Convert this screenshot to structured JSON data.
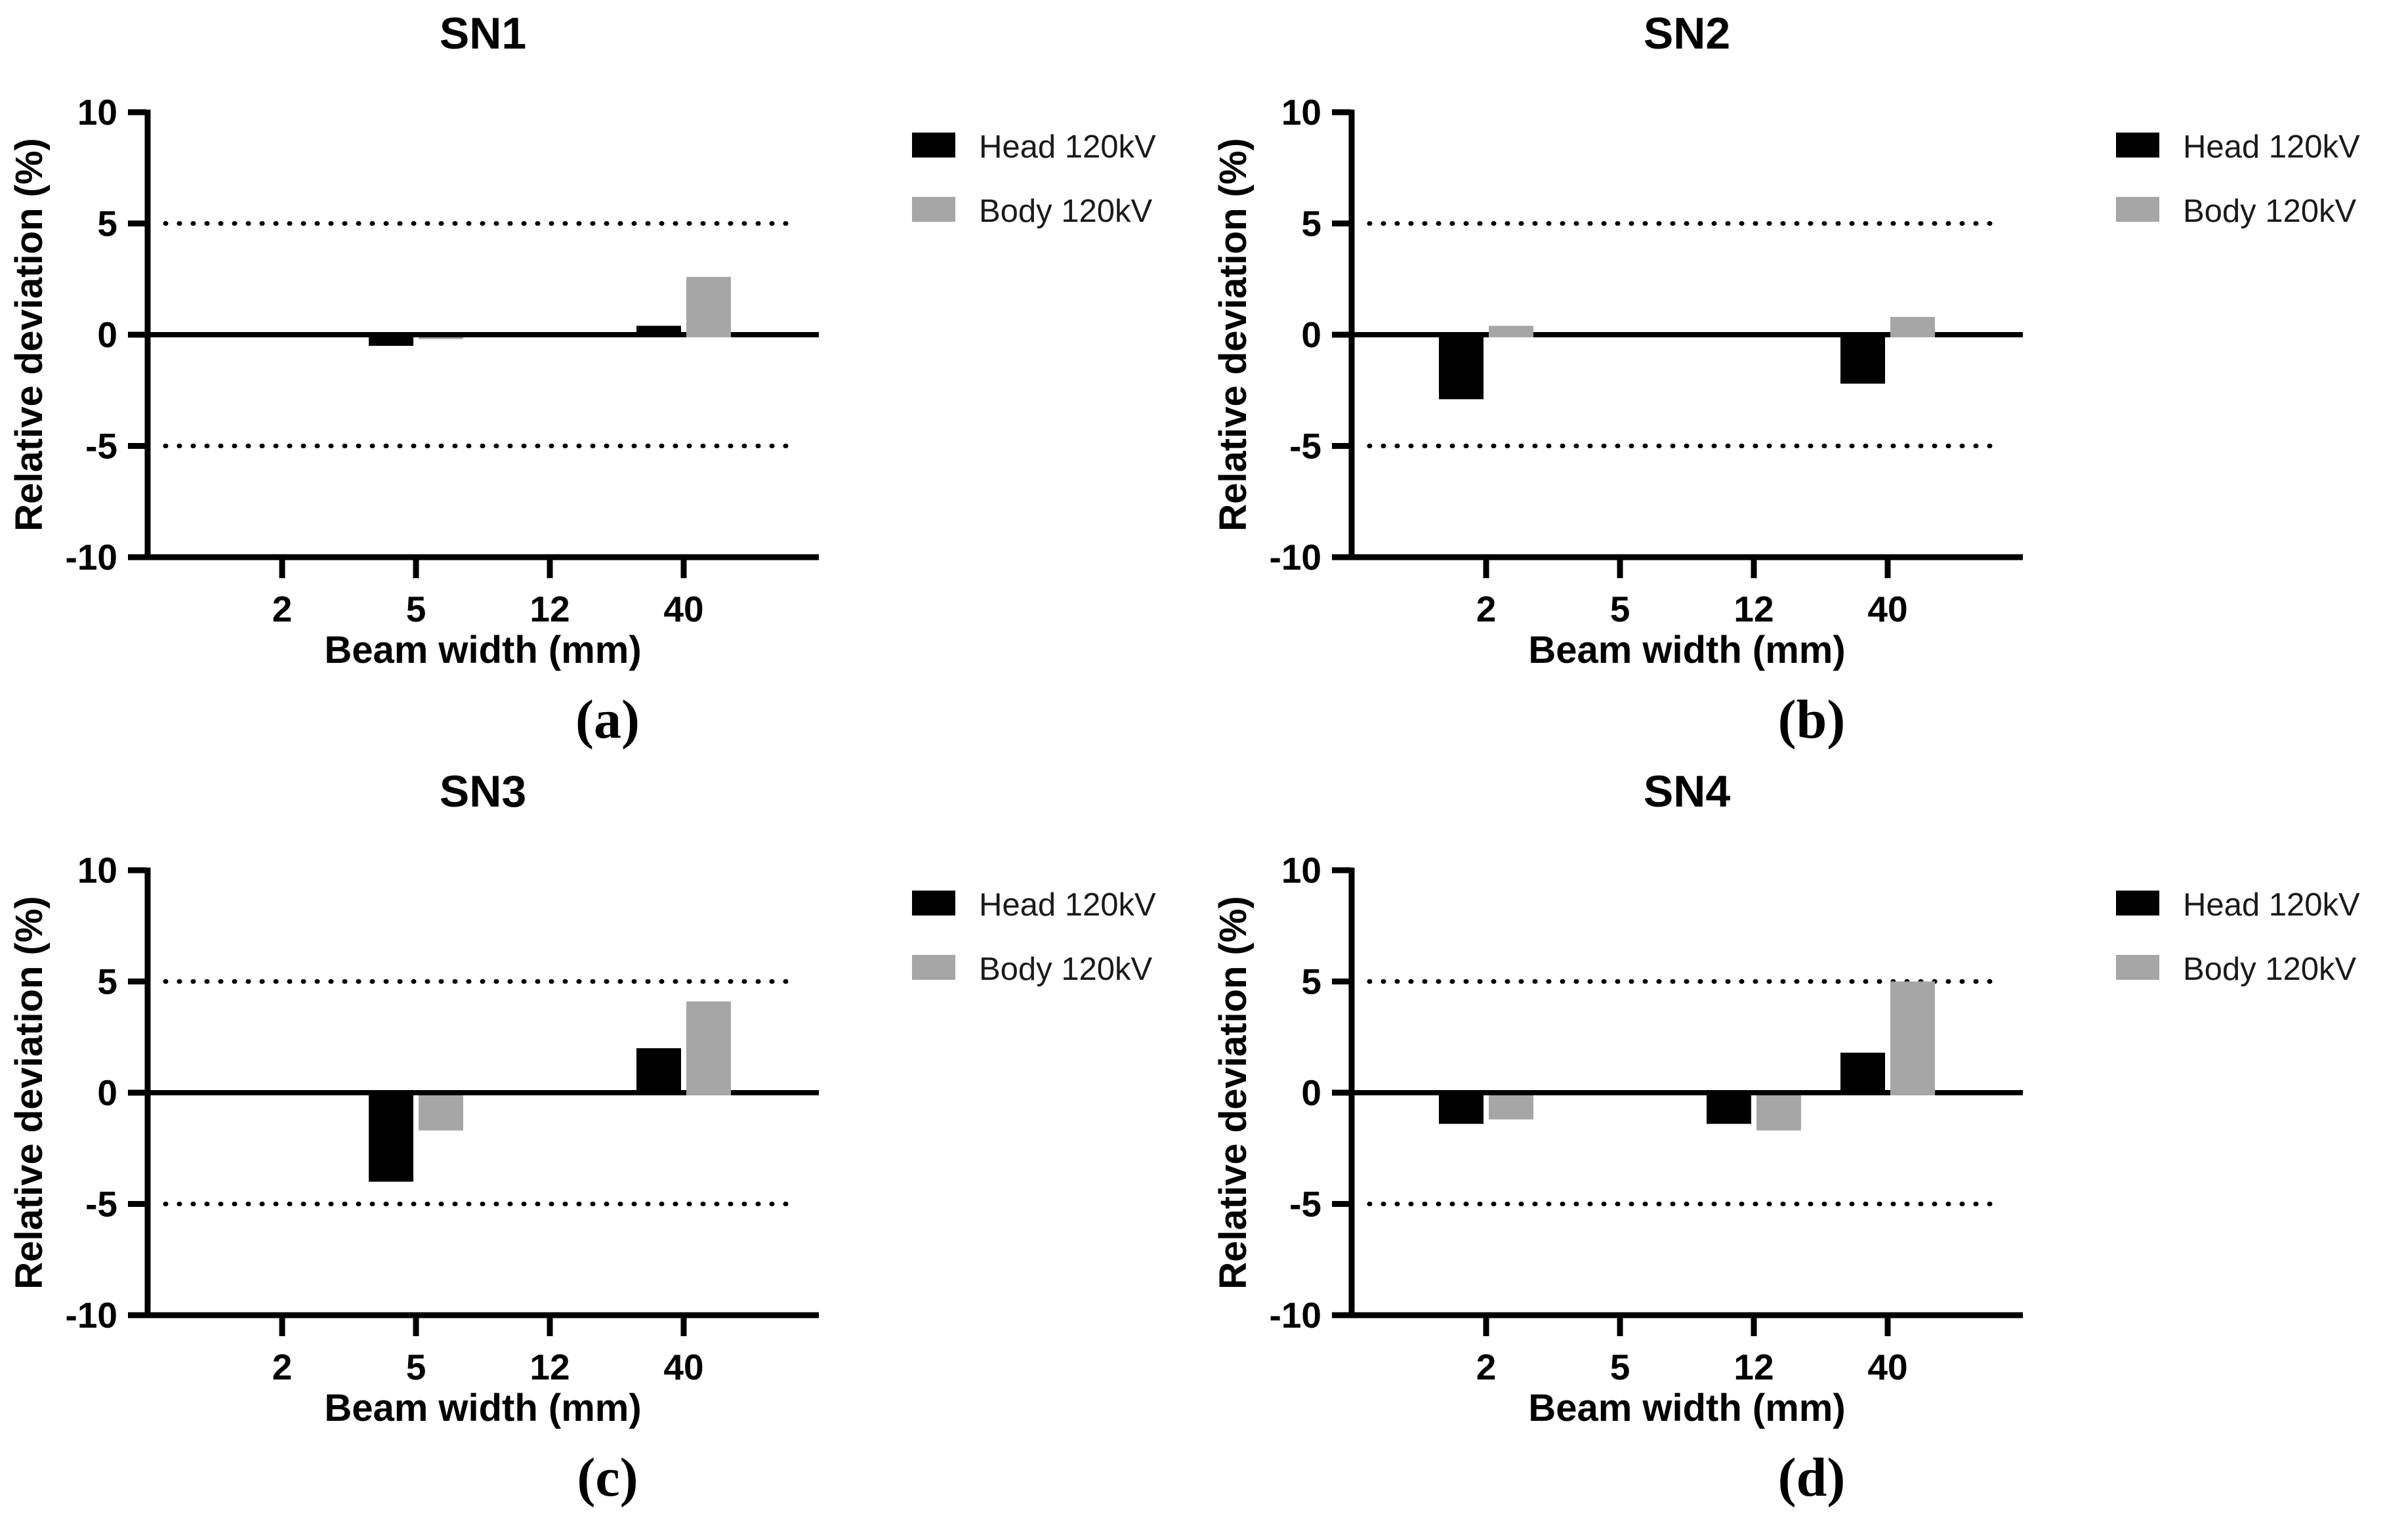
{
  "figure": {
    "background": "#ffffff",
    "layout": "2x2",
    "series_colors": {
      "head": "#000000",
      "body": "#a6a6a6"
    }
  },
  "axis": {
    "ylabel": "Relative deviation (%)",
    "xlabel": "Beam width (mm)",
    "ylim": [
      -10,
      10
    ],
    "yticks": [
      10,
      5,
      0,
      -5,
      -10
    ],
    "ytick_labels": [
      "10",
      "5",
      "0",
      "-5",
      "-10"
    ],
    "reference_lines": [
      5,
      -5
    ],
    "categories": [
      "2",
      "5",
      "12",
      "40"
    ]
  },
  "chart_data": [
    {
      "type": "bar",
      "title": "SN1",
      "sublabel": "(a)",
      "xlabel": "Beam width (mm)",
      "ylabel": "Relative deviation (%)",
      "categories": [
        "2",
        "5",
        "12",
        "40"
      ],
      "ylim": [
        -10,
        10
      ],
      "yticks": [
        10,
        5,
        0,
        -5,
        -10
      ],
      "reference_lines": [
        5,
        -5
      ],
      "legend_position": "right-outside",
      "series": [
        {
          "name": "Head 120kV",
          "color": "#000000",
          "values": [
            0,
            -0.5,
            0,
            0.4
          ]
        },
        {
          "name": "Body 120kV",
          "color": "#a6a6a6",
          "values": [
            0,
            -0.2,
            0,
            2.6
          ]
        }
      ]
    },
    {
      "type": "bar",
      "title": "SN2",
      "sublabel": "(b)",
      "xlabel": "Beam width (mm)",
      "ylabel": "Relative deviation (%)",
      "categories": [
        "2",
        "5",
        "12",
        "40"
      ],
      "ylim": [
        -10,
        10
      ],
      "yticks": [
        10,
        5,
        0,
        -5,
        -10
      ],
      "reference_lines": [
        5,
        -5
      ],
      "legend_position": "right-outside",
      "series": [
        {
          "name": "Head 120kV",
          "color": "#000000",
          "values": [
            -2.9,
            0,
            0,
            -2.2
          ]
        },
        {
          "name": "Body 120kV",
          "color": "#a6a6a6",
          "values": [
            0.4,
            0,
            0,
            0.8
          ]
        }
      ]
    },
    {
      "type": "bar",
      "title": "SN3",
      "sublabel": "(c)",
      "xlabel": "Beam width (mm)",
      "ylabel": "Relative deviation (%)",
      "categories": [
        "2",
        "5",
        "12",
        "40"
      ],
      "ylim": [
        -10,
        10
      ],
      "yticks": [
        10,
        5,
        0,
        -5,
        -10
      ],
      "reference_lines": [
        5,
        -5
      ],
      "legend_position": "right-outside",
      "series": [
        {
          "name": "Head 120kV",
          "color": "#000000",
          "values": [
            0,
            -4.0,
            0,
            2.0
          ]
        },
        {
          "name": "Body 120kV",
          "color": "#a6a6a6",
          "values": [
            0,
            -1.7,
            0,
            4.1
          ]
        }
      ]
    },
    {
      "type": "bar",
      "title": "SN4",
      "sublabel": "(d)",
      "xlabel": "Beam width (mm)",
      "ylabel": "Relative deviation (%)",
      "categories": [
        "2",
        "5",
        "12",
        "40"
      ],
      "ylim": [
        -10,
        10
      ],
      "yticks": [
        10,
        5,
        0,
        -5,
        -10
      ],
      "reference_lines": [
        5,
        -5
      ],
      "legend_position": "right-outside",
      "series": [
        {
          "name": "Head 120kV",
          "color": "#000000",
          "values": [
            -1.4,
            0,
            -1.4,
            1.8
          ]
        },
        {
          "name": "Body 120kV",
          "color": "#a6a6a6",
          "values": [
            -1.2,
            0,
            -1.7,
            5.0
          ]
        }
      ]
    }
  ]
}
